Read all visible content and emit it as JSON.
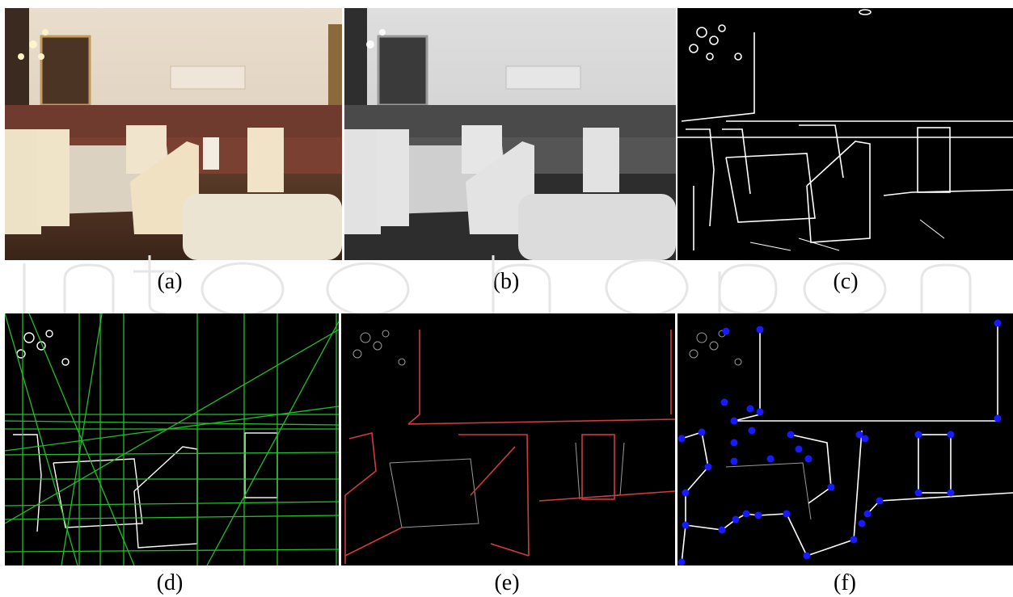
{
  "figure": {
    "panels": [
      {
        "label": "(a)",
        "content": "color-photo"
      },
      {
        "label": "(b)",
        "content": "grayscale-photo"
      },
      {
        "label": "(c)",
        "content": "edge-map"
      },
      {
        "label": "(d)",
        "content": "hough-lines"
      },
      {
        "label": "(e)",
        "content": "selected-lines"
      },
      {
        "label": "(f)",
        "content": "corner-points"
      }
    ],
    "watermark": "IntechOpen"
  },
  "colors": {
    "hough_line": "#22c02a",
    "selected_line": "#d23b3b",
    "corner_point": "#1a1aff",
    "edge": "#ffffff",
    "background": "#000000"
  }
}
